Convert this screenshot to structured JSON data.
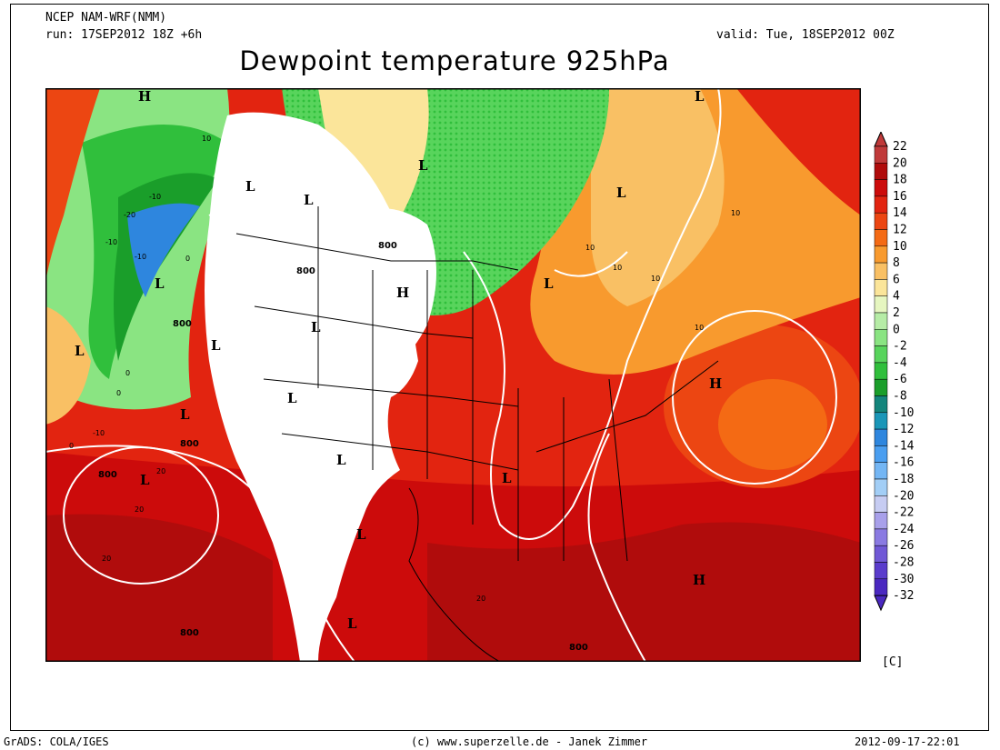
{
  "header": {
    "model": "NCEP NAM-WRF(NMM)",
    "run": "run: 17SEP2012 18Z +6h",
    "valid": "valid: Tue, 18SEP2012 00Z",
    "title": "Dewpoint temperature 925hPa"
  },
  "colorbar": {
    "unit": "[C]",
    "levels": [
      "22",
      "20",
      "18",
      "16",
      "14",
      "12",
      "10",
      "8",
      "6",
      "4",
      "2",
      "0",
      "-2",
      "-4",
      "-6",
      "-8",
      "-10",
      "-12",
      "-14",
      "-16",
      "-18",
      "-20",
      "-22",
      "-24",
      "-26",
      "-28",
      "-30",
      "-32"
    ],
    "colors": [
      "#c03a3a",
      "#b00c0c",
      "#cc0b0b",
      "#e22410",
      "#ec4612",
      "#f46a14",
      "#f89a2e",
      "#f9c064",
      "#fbe59a",
      "#e6f6c0",
      "#b6eca6",
      "#8ae482",
      "#58d45c",
      "#30bf3c",
      "#1a9e2a",
      "#13857c",
      "#1a96b8",
      "#2e86de",
      "#4a9ef0",
      "#74b6f4",
      "#a2cef6",
      "#c6ccf2",
      "#a8a0ea",
      "#8a7ae2",
      "#7058d6",
      "#5a3ccc",
      "#4a28c0"
    ]
  },
  "map": {
    "pressure_labels": [
      "800",
      "800",
      "800",
      "800",
      "800",
      "800",
      "800"
    ],
    "dewpoint_labels": [
      "10",
      "10",
      "10",
      "10",
      "10",
      "10",
      "-10",
      "-20",
      "-10",
      "-10",
      "-10",
      "0",
      "0",
      "0",
      "0",
      "20",
      "20",
      "20",
      "20"
    ],
    "pressure_centers": [
      "H",
      "L",
      "L",
      "L",
      "L",
      "L",
      "L",
      "L",
      "L",
      "L",
      "H",
      "L",
      "L",
      "L",
      "L",
      "L",
      "H",
      "L",
      "H",
      "L",
      "L"
    ]
  },
  "footer": {
    "left": "GrADS: COLA/IGES",
    "center": "(c) www.superzelle.de - Janek Zimmer",
    "right": "2012-09-17-22:01"
  }
}
